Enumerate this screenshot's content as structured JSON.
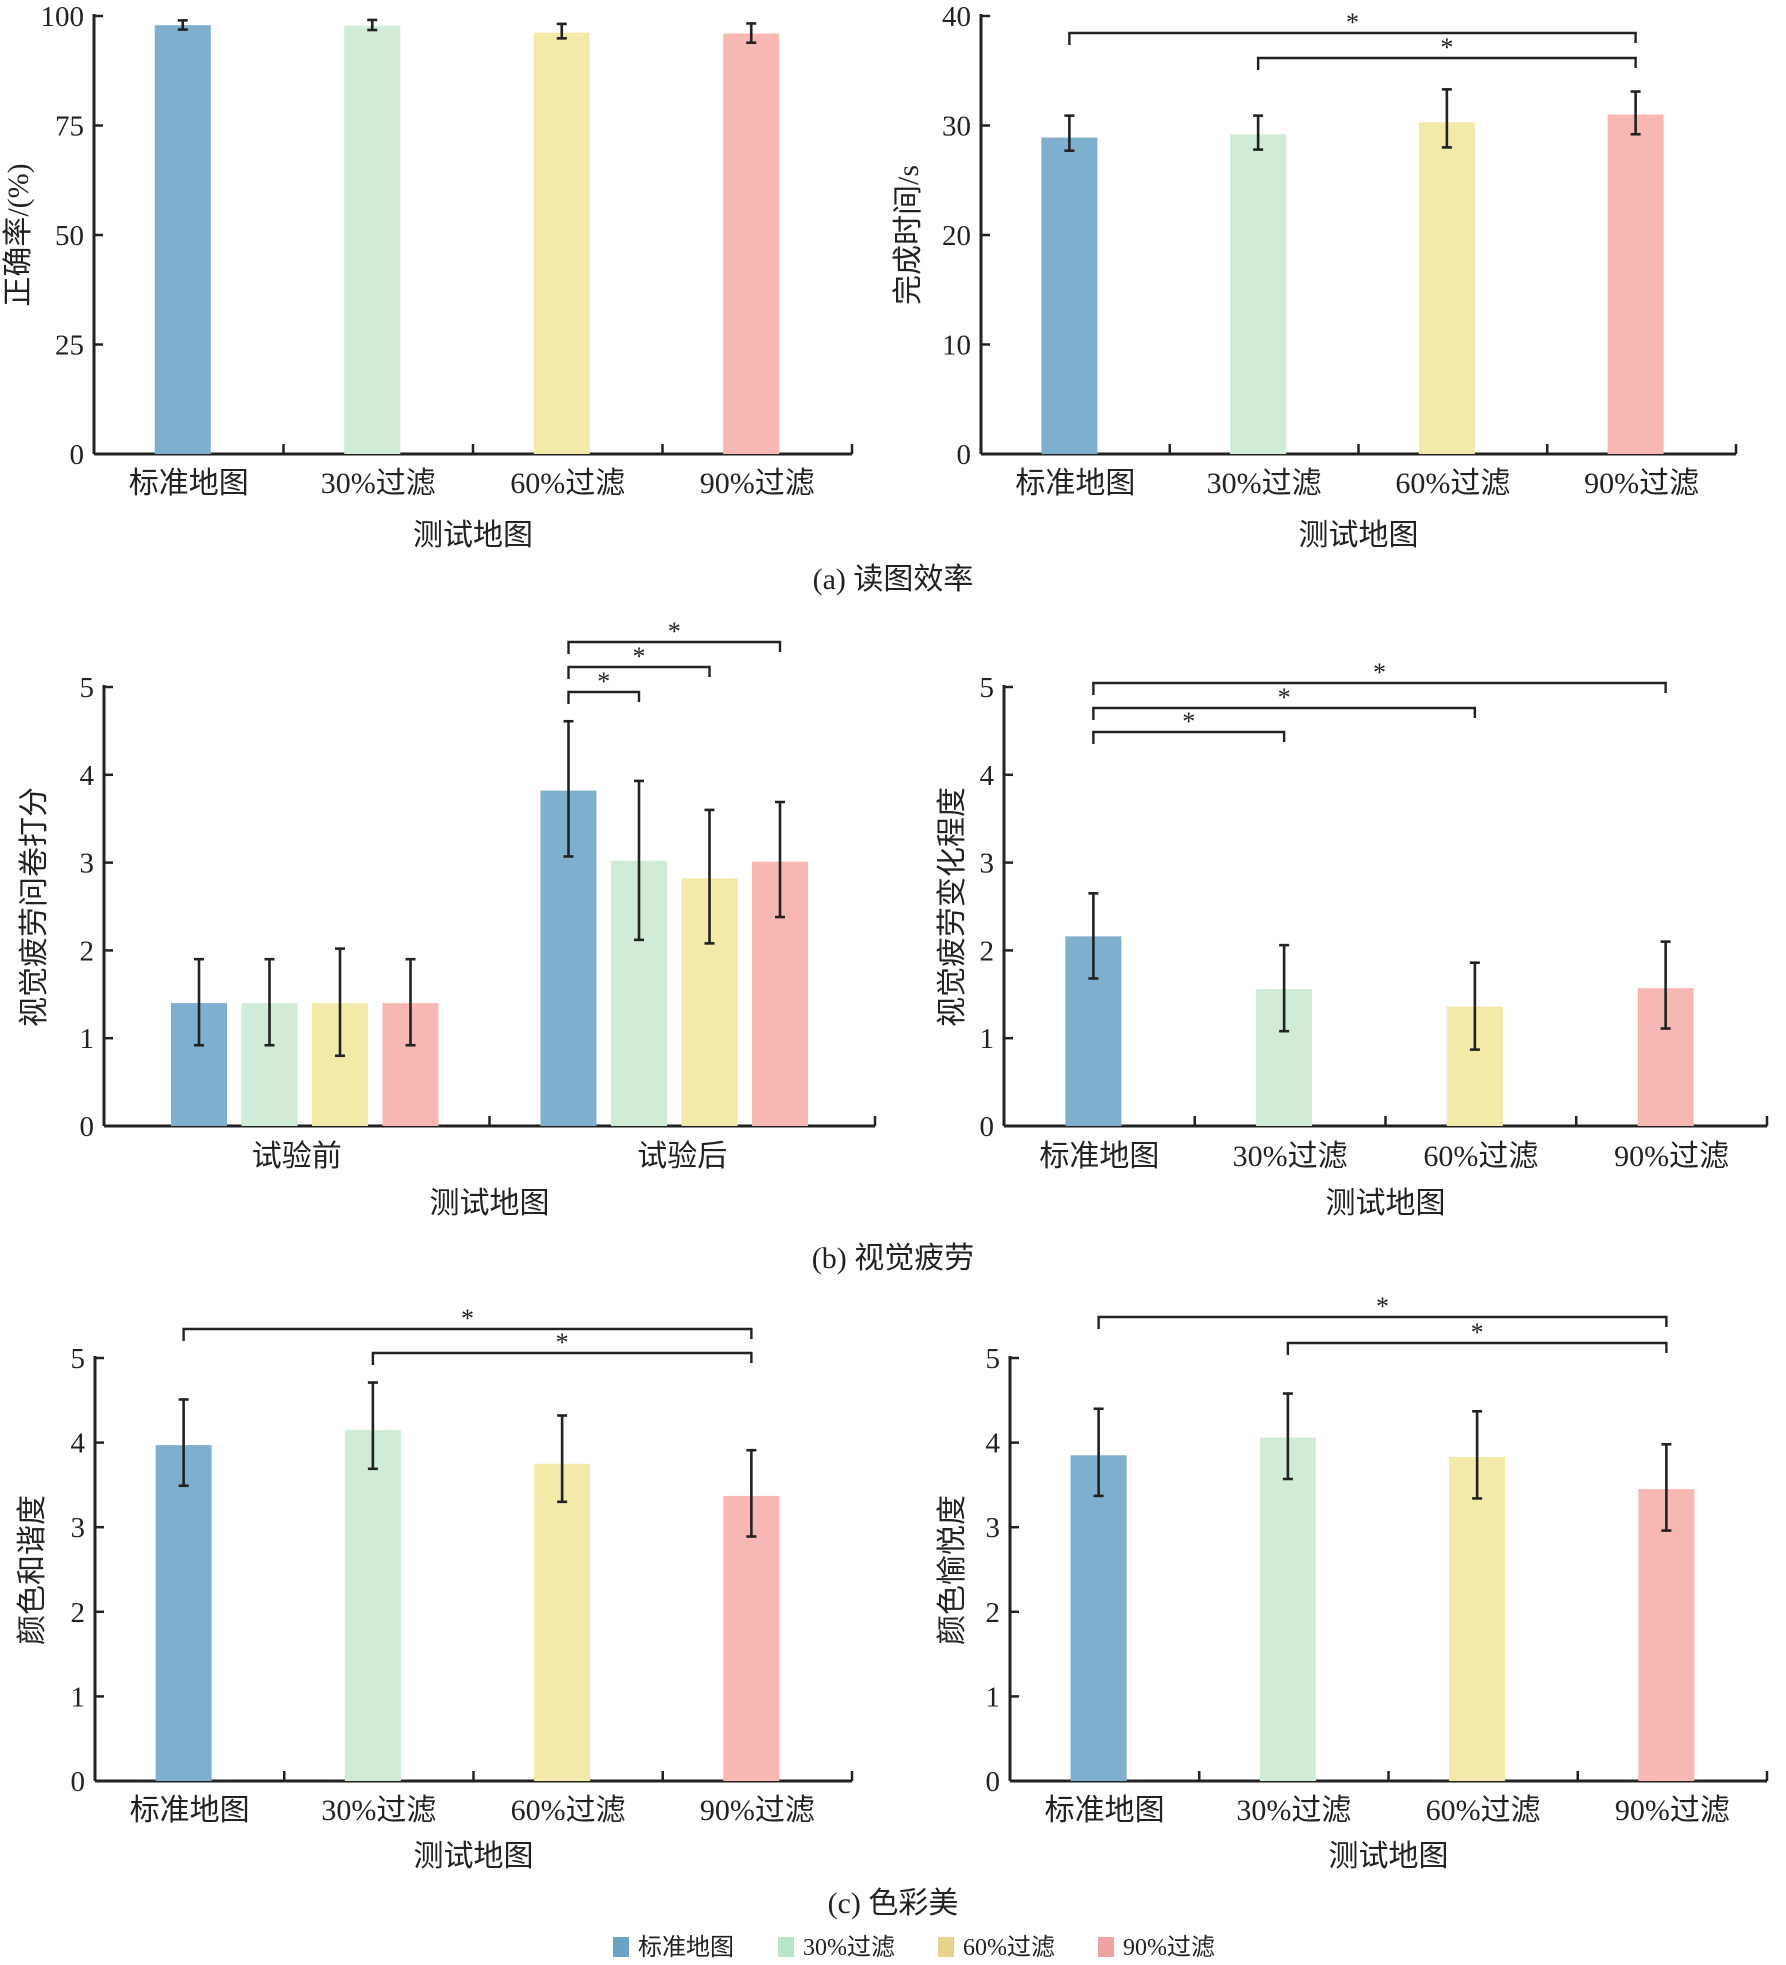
{
  "colors": {
    "bars": [
      "#7fafcf",
      "#d0ecd6",
      "#f3eaa9",
      "#f7b8b4"
    ],
    "legend": [
      "#6aa3c4",
      "#b8e6c8",
      "#e6d38e",
      "#f0a2a0"
    ]
  },
  "captions": {
    "a": "(a) 读图效率",
    "b": "(b) 视觉疲劳",
    "c": "(c) 色彩美"
  },
  "legend": [
    "标准地图",
    "30%过滤",
    "60%过滤",
    "90%过滤"
  ],
  "chart_data": [
    {
      "id": "accuracy",
      "panel": "a",
      "type": "bar",
      "title": "",
      "xlabel": "测试地图",
      "ylabel": "正确率/(%)",
      "categories": [
        "标准地图",
        "30%过滤",
        "60%过滤",
        "90%过滤"
      ],
      "values": [
        97.9,
        97.8,
        96.2,
        96.0
      ],
      "error_upper": [
        99.0,
        99.1,
        98.2,
        98.3
      ],
      "error_lower": [
        96.9,
        96.8,
        94.9,
        93.9
      ],
      "ylim": [
        0,
        100
      ],
      "yticks": [
        0,
        25,
        50,
        75,
        100
      ],
      "significance": []
    },
    {
      "id": "completion-time",
      "panel": "a",
      "type": "bar",
      "title": "",
      "xlabel": "测试地图",
      "ylabel": "完成时间/s",
      "categories": [
        "标准地图",
        "30%过滤",
        "60%过滤",
        "90%过滤"
      ],
      "values": [
        28.9,
        29.2,
        30.3,
        31.0
      ],
      "error_upper": [
        30.9,
        30.9,
        33.3,
        33.1
      ],
      "error_lower": [
        27.7,
        27.8,
        28.0,
        29.2
      ],
      "ylim": [
        0,
        40
      ],
      "yticks": [
        0,
        10,
        20,
        30,
        40
      ],
      "significance": [
        {
          "from": 0,
          "to": 3,
          "label": "*"
        },
        {
          "from": 1,
          "to": 3,
          "label": "*"
        }
      ]
    },
    {
      "id": "fatigue-questionnaire",
      "panel": "b",
      "type": "bar",
      "title": "",
      "xlabel": "测试地图",
      "ylabel": "视觉疲劳问卷打分",
      "categories": [
        "试验前",
        "试验后"
      ],
      "series": [
        {
          "name": "标准地图",
          "values": [
            1.4,
            3.82
          ],
          "error_upper": [
            1.9,
            4.61
          ],
          "error_lower": [
            0.92,
            3.07
          ]
        },
        {
          "name": "30%过滤",
          "values": [
            1.4,
            3.02
          ],
          "error_upper": [
            1.9,
            3.93
          ],
          "error_lower": [
            0.92,
            2.12
          ]
        },
        {
          "name": "60%过滤",
          "values": [
            1.4,
            2.82
          ],
          "error_upper": [
            2.02,
            3.6
          ],
          "error_lower": [
            0.8,
            2.08
          ]
        },
        {
          "name": "90%过滤",
          "values": [
            1.4,
            3.01
          ],
          "error_upper": [
            1.9,
            3.69
          ],
          "error_lower": [
            0.92,
            2.38
          ]
        }
      ],
      "ylim": [
        0,
        5
      ],
      "yticks": [
        0,
        1,
        2,
        3,
        4,
        5
      ],
      "significance": [
        {
          "group": 1,
          "from": 0,
          "to": 1,
          "label": "*"
        },
        {
          "group": 1,
          "from": 0,
          "to": 2,
          "label": "*"
        },
        {
          "group": 1,
          "from": 0,
          "to": 3,
          "label": "*"
        }
      ]
    },
    {
      "id": "fatigue-change",
      "panel": "b",
      "type": "bar",
      "title": "",
      "xlabel": "测试地图",
      "ylabel": "视觉疲劳变化程度",
      "categories": [
        "标准地图",
        "30%过滤",
        "60%过滤",
        "90%过滤"
      ],
      "values": [
        2.16,
        1.56,
        1.36,
        1.57
      ],
      "error_upper": [
        2.65,
        2.06,
        1.86,
        2.1
      ],
      "error_lower": [
        1.68,
        1.08,
        0.87,
        1.11
      ],
      "ylim": [
        0,
        5
      ],
      "yticks": [
        0,
        1,
        2,
        3,
        4,
        5
      ],
      "significance": [
        {
          "from": 0,
          "to": 1,
          "label": "*"
        },
        {
          "from": 0,
          "to": 2,
          "label": "*"
        },
        {
          "from": 0,
          "to": 3,
          "label": "*"
        }
      ]
    },
    {
      "id": "color-harmony",
      "panel": "c",
      "type": "bar",
      "title": "",
      "xlabel": "测试地图",
      "ylabel": "颜色和谐度",
      "categories": [
        "标准地图",
        "30%过滤",
        "60%过滤",
        "90%过滤"
      ],
      "values": [
        3.97,
        4.15,
        3.75,
        3.37
      ],
      "error_upper": [
        4.51,
        4.71,
        4.32,
        3.91
      ],
      "error_lower": [
        3.49,
        3.69,
        3.3,
        2.89
      ],
      "ylim": [
        0,
        5
      ],
      "yticks": [
        0,
        1,
        2,
        3,
        4,
        5
      ],
      "significance": [
        {
          "from": 0,
          "to": 3,
          "label": "*"
        },
        {
          "from": 1,
          "to": 3,
          "label": "*"
        }
      ]
    },
    {
      "id": "color-pleasure",
      "panel": "c",
      "type": "bar",
      "title": "",
      "xlabel": "测试地图",
      "ylabel": "颜色愉悦度",
      "categories": [
        "标准地图",
        "30%过滤",
        "60%过滤",
        "90%过滤"
      ],
      "values": [
        3.85,
        4.06,
        3.83,
        3.45
      ],
      "error_upper": [
        4.4,
        4.58,
        4.37,
        3.98
      ],
      "error_lower": [
        3.37,
        3.57,
        3.34,
        2.96
      ],
      "ylim": [
        0,
        5
      ],
      "yticks": [
        0,
        1,
        2,
        3,
        4,
        5
      ],
      "significance": [
        {
          "from": 0,
          "to": 3,
          "label": "*"
        },
        {
          "from": 1,
          "to": 3,
          "label": "*"
        }
      ]
    }
  ]
}
